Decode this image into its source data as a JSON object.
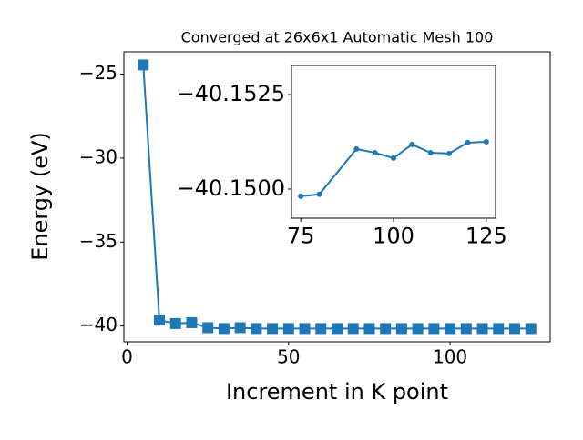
{
  "chart_data": [
    {
      "type": "line",
      "title": "Converged at 26x6x1 Automatic Mesh 100",
      "xlabel": "Increment in K point",
      "ylabel": "Energy (eV)",
      "x": [
        5,
        10,
        15,
        20,
        25,
        30,
        35,
        40,
        45,
        50,
        55,
        60,
        65,
        70,
        75,
        80,
        85,
        90,
        95,
        100,
        105,
        110,
        115,
        120,
        125
      ],
      "series": [
        {
          "color": "#1f77b4",
          "marker": "square",
          "values": [
            -24.45,
            -39.65,
            -39.85,
            -39.8,
            -40.1,
            -40.15,
            -40.1,
            -40.15,
            -40.15,
            -40.15,
            -40.15,
            -40.15,
            -40.15,
            -40.15,
            -40.1498,
            -40.1499,
            -40.1508,
            -40.1511,
            -40.151,
            -40.1508,
            -40.1512,
            -40.151,
            -40.1509,
            -40.1512,
            -40.1513
          ]
        }
      ],
      "xlim": [
        -1,
        131
      ],
      "ylim": [
        -40.94,
        -23.67
      ],
      "xticks": [
        0,
        50,
        100
      ],
      "yticks": [
        {
          "value": -25,
          "label": "−25"
        },
        {
          "value": -30,
          "label": "−30"
        },
        {
          "value": -35,
          "label": "−35"
        },
        {
          "value": -40,
          "label": "−40"
        }
      ]
    },
    {
      "type": "line",
      "x": [
        75,
        80,
        90,
        95,
        100,
        105,
        110,
        115,
        120,
        125
      ],
      "series": [
        {
          "color": "#1f77b4",
          "marker": "circle",
          "values": [
            -40.14981,
            -40.14986,
            -40.15106,
            -40.15096,
            -40.15082,
            -40.15118,
            -40.15096,
            -40.15094,
            -40.15123,
            -40.15125
          ]
        }
      ],
      "xlim": [
        72.5,
        127.5
      ],
      "ylim": [
        -40.14923,
        -40.15327
      ],
      "xticks": [
        75,
        100,
        125
      ],
      "yticks": [
        {
          "value": -40.1525,
          "label": "−40.1525"
        },
        {
          "value": -40.15,
          "label": "−40.1500"
        }
      ]
    }
  ]
}
